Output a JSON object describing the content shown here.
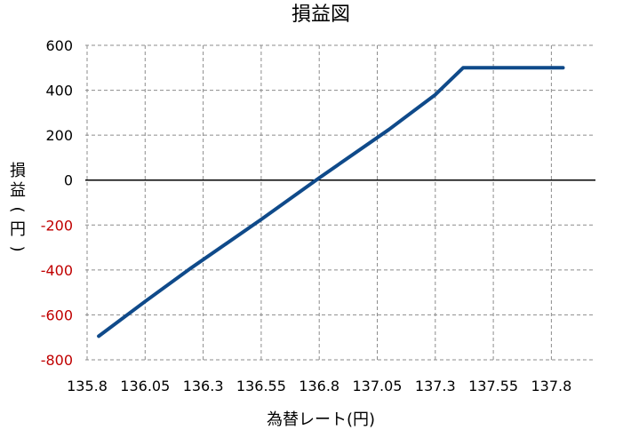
{
  "chart_data": {
    "type": "line",
    "title": "損益図",
    "xlabel": "為替レート(円)",
    "ylabel_chars": [
      "損",
      "益",
      "(",
      "円",
      ")"
    ],
    "x_ticks": [
      "135.8",
      "136.05",
      "136.3",
      "136.55",
      "136.8",
      "137.05",
      "137.3",
      "137.55",
      "137.8"
    ],
    "y_ticks": [
      "600",
      "400",
      "200",
      "0",
      "-200",
      "-400",
      "-600",
      "-800"
    ],
    "xlim": [
      135.8,
      137.8
    ],
    "ylim": [
      -800,
      600
    ],
    "grid": true,
    "colors": {
      "series": "#0f4a8a",
      "negative_tick": "#c00000",
      "positive_tick": "#000000"
    },
    "series": [
      {
        "x": [
          135.85,
          136.05,
          136.25,
          136.55,
          136.8,
          137.1,
          137.3,
          137.42,
          137.85
        ],
        "y": [
          -695,
          -540,
          -390,
          -175,
          10,
          225,
          380,
          500,
          500
        ]
      }
    ]
  }
}
